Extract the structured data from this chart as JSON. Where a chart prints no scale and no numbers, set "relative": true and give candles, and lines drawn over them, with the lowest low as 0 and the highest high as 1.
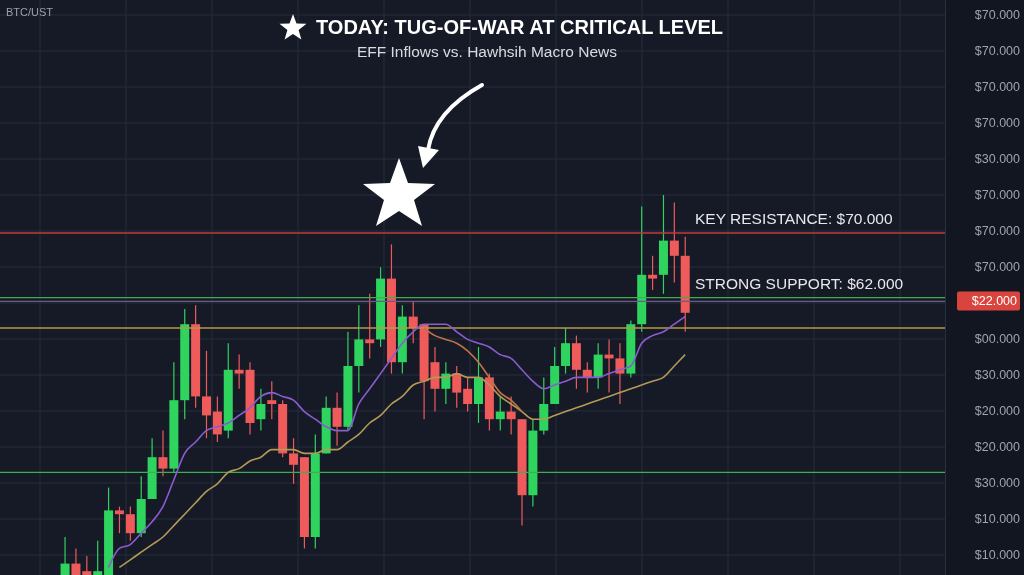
{
  "chart_data": {
    "type": "candlestick",
    "title": "TODAY: TUG-OF-WAR AT CRITICAL LEVEL",
    "subtitle": "EFF Inflows vs. Hawhsih Macro News",
    "relative": true,
    "grid": true,
    "categories": [
      null,
      null,
      null,
      null,
      null,
      null,
      null,
      null,
      null,
      null,
      null,
      null,
      null,
      null,
      null,
      null,
      null,
      null,
      null,
      null,
      null,
      null,
      null,
      null,
      null,
      null,
      null,
      null,
      null,
      null,
      null,
      null,
      null,
      null,
      null,
      null,
      null,
      null,
      null,
      null,
      null,
      null,
      null,
      null,
      null,
      null,
      null,
      null,
      null,
      null,
      null,
      null,
      null,
      null,
      null,
      null,
      null,
      null
    ],
    "ohlc": [
      [
        0,
        0.1,
        0,
        0.03
      ],
      [
        0.03,
        0.07,
        0,
        0
      ],
      [
        0.01,
        0.05,
        0,
        0
      ],
      [
        0,
        0.09,
        0,
        0.01
      ],
      [
        0,
        0.23,
        0,
        0.17
      ],
      [
        0.17,
        0.18,
        0.11,
        0.16
      ],
      [
        0.16,
        0.18,
        0.09,
        0.11
      ],
      [
        0.11,
        0.26,
        0.1,
        0.2
      ],
      [
        0.2,
        0.36,
        0.2,
        0.31
      ],
      [
        0.31,
        0.38,
        0.26,
        0.28
      ],
      [
        0.28,
        0.56,
        0.27,
        0.46
      ],
      [
        0.46,
        0.7,
        0.41,
        0.66
      ],
      [
        0.66,
        0.71,
        0.44,
        0.47
      ],
      [
        0.47,
        0.59,
        0.36,
        0.42
      ],
      [
        0.43,
        0.47,
        0.35,
        0.37
      ],
      [
        0.38,
        0.61,
        0.36,
        0.54
      ],
      [
        0.54,
        0.58,
        0.49,
        0.53
      ],
      [
        0.54,
        0.56,
        0.37,
        0.4
      ],
      [
        0.41,
        0.49,
        0.38,
        0.45
      ],
      [
        0.46,
        0.51,
        0.41,
        0.45
      ],
      [
        0.45,
        0.46,
        0.31,
        0.32
      ],
      [
        0.32,
        0.36,
        0.24,
        0.29
      ],
      [
        0.31,
        0.31,
        0.07,
        0.1
      ],
      [
        0.1,
        0.37,
        0.07,
        0.32
      ],
      [
        0.32,
        0.47,
        0.32,
        0.44
      ],
      [
        0.44,
        0.48,
        0.34,
        0.39
      ],
      [
        0.39,
        0.64,
        0.38,
        0.55
      ],
      [
        0.55,
        0.71,
        0.48,
        0.62
      ],
      [
        0.62,
        0.74,
        0.57,
        0.61
      ],
      [
        0.62,
        0.81,
        0.6,
        0.78
      ],
      [
        0.78,
        0.87,
        0.53,
        0.56
      ],
      [
        0.56,
        0.71,
        0.53,
        0.68
      ],
      [
        0.68,
        0.72,
        0.61,
        0.65
      ],
      [
        0.66,
        0.66,
        0.41,
        0.51
      ],
      [
        0.56,
        0.6,
        0.43,
        0.49
      ],
      [
        0.49,
        0.56,
        0.45,
        0.53
      ],
      [
        0.53,
        0.55,
        0.44,
        0.48
      ],
      [
        0.49,
        0.52,
        0.43,
        0.45
      ],
      [
        0.45,
        0.6,
        0.4,
        0.52
      ],
      [
        0.52,
        0.53,
        0.38,
        0.41
      ],
      [
        0.41,
        0.47,
        0.38,
        0.43
      ],
      [
        0.43,
        0.47,
        0.37,
        0.41
      ],
      [
        0.41,
        0.41,
        0.13,
        0.21
      ],
      [
        0.21,
        0.41,
        0.18,
        0.38
      ],
      [
        0.38,
        0.52,
        0.37,
        0.45
      ],
      [
        0.45,
        0.6,
        0.45,
        0.55
      ],
      [
        0.55,
        0.65,
        0.53,
        0.61
      ],
      [
        0.61,
        0.63,
        0.49,
        0.54
      ],
      [
        0.54,
        0.56,
        0.48,
        0.52
      ],
      [
        0.52,
        0.61,
        0.49,
        0.58
      ],
      [
        0.58,
        0.62,
        0.48,
        0.57
      ],
      [
        0.57,
        0.61,
        0.45,
        0.53
      ],
      [
        0.53,
        0.67,
        0.52,
        0.66
      ],
      [
        0.66,
        0.97,
        0.64,
        0.79
      ],
      [
        0.79,
        0.84,
        0.75,
        0.78
      ],
      [
        0.79,
        1,
        0.74,
        0.88
      ],
      [
        0.88,
        0.98,
        0.77,
        0.84
      ],
      [
        0.84,
        0.89,
        0.64,
        0.69
      ]
    ],
    "series": [
      {
        "type": "line",
        "color": "#8a5cd0",
        "values": [
          null,
          null,
          null,
          null,
          0.02,
          0.07,
          0.08,
          0.11,
          0.14,
          0.18,
          0.25,
          0.32,
          0.35,
          0.38,
          0.39,
          0.4,
          0.42,
          0.44,
          0.47,
          0.48,
          0.47,
          0.46,
          0.43,
          0.41,
          0.39,
          0.38,
          0.38,
          0.45,
          0.49,
          0.53,
          0.57,
          0.61,
          0.64,
          0.66,
          0.66,
          0.66,
          0.64,
          0.62,
          0.61,
          0.6,
          0.58,
          0.57,
          0.54,
          0.51,
          0.49,
          0.5,
          0.51,
          0.52,
          0.52,
          0.52,
          0.53,
          0.54,
          0.55,
          0.61,
          0.63,
          0.64,
          0.66,
          0.68
        ]
      },
      {
        "type": "line",
        "color": "#b39a55",
        "values": [
          null,
          null,
          null,
          null,
          null,
          0.02,
          0.04,
          0.06,
          0.08,
          0.1,
          0.13,
          0.16,
          0.19,
          0.22,
          0.24,
          0.27,
          0.28,
          0.3,
          0.31,
          0.33,
          0.33,
          0.33,
          0.32,
          0.32,
          0.33,
          0.33,
          0.35,
          0.37,
          0.4,
          0.42,
          0.45,
          0.47,
          0.5,
          0.51,
          0.52,
          0.52,
          0.53,
          0.52,
          0.52,
          0.5,
          0.47,
          0.45,
          0.43,
          0.41,
          0.41,
          0.42,
          0.43,
          0.44,
          0.45,
          0.46,
          0.47,
          0.48,
          0.49,
          0.5,
          0.51,
          0.52,
          0.55,
          0.58
        ]
      },
      {
        "type": "line",
        "color": "#c0704a",
        "values": [
          null,
          null,
          null,
          null,
          null,
          null,
          null,
          null,
          null,
          null,
          null,
          null,
          null,
          null,
          null,
          null,
          null,
          null,
          null,
          null,
          null,
          null,
          null,
          null,
          null,
          null,
          null,
          null,
          null,
          null,
          null,
          null,
          null,
          0.65,
          0.63,
          0.62,
          0.61,
          0.59,
          0.56,
          0.52,
          0.48,
          0.46,
          0.43,
          null,
          null,
          null,
          null,
          null,
          null,
          null,
          null,
          null,
          null,
          null,
          null,
          null,
          null,
          null
        ]
      }
    ],
    "ref_lines": [
      {
        "axis": "y",
        "value": 0.9,
        "color": "#c23a3c"
      },
      {
        "axis": "y",
        "value": 0.73,
        "color": "#3fae4f"
      },
      {
        "axis": "y",
        "value": 0.72,
        "color": "#6e5a8a"
      },
      {
        "axis": "y",
        "value": 0.65,
        "color": "#b59a4a"
      },
      {
        "axis": "y",
        "value": 0.27,
        "color": "#3fae4f"
      }
    ],
    "annotations": [
      "BTC/UST",
      "KEY RESISTANCE: $70.000",
      "STRONG SUPPORT: $62.000",
      "$22.000",
      "$70.000",
      "$70.000",
      "$70.000",
      "$70.000",
      "$30.000",
      "$70.000",
      "$70.000",
      "$70.000",
      "$00.000",
      "$30.000",
      "$20.000",
      "$20.000",
      "$30.000",
      "$10.000",
      "$10.000"
    ]
  }
}
